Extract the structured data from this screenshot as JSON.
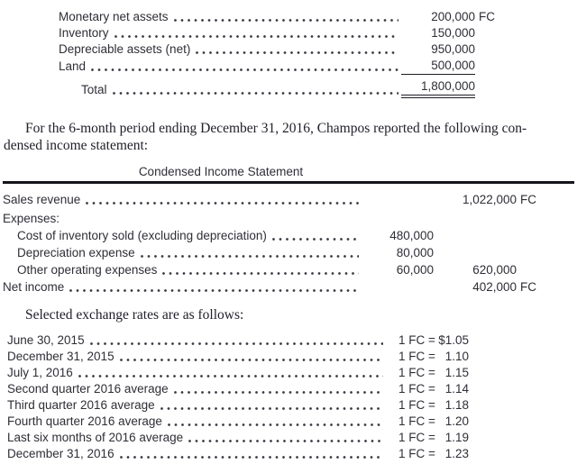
{
  "colors": {
    "text": "#2e2e36",
    "rule": "#15151c",
    "background": "#ffffff"
  },
  "net_assets_table": {
    "rows": [
      {
        "label": "Monetary net assets",
        "amount": "200,000",
        "suffix": "FC"
      },
      {
        "label": "Inventory",
        "amount": "150,000",
        "suffix": ""
      },
      {
        "label": "Depreciable assets (net)",
        "amount": "950,000",
        "suffix": ""
      },
      {
        "label": "Land",
        "amount": "500,000",
        "suffix": ""
      },
      {
        "label": "Total",
        "amount": "1,800,000",
        "suffix": ""
      }
    ]
  },
  "intro_paragraph": {
    "line1": "For the 6-month period ending December 31, 2016, Champos reported the following con-",
    "line2": "densed income statement:"
  },
  "income_statement": {
    "title": "Condensed Income Statement",
    "rows": [
      {
        "label": "Sales revenue",
        "col1": "",
        "col2": "1,022,000",
        "suffix": "FC"
      },
      {
        "label": "Expenses:",
        "col1": "",
        "col2": "",
        "suffix": ""
      },
      {
        "label": "Cost of inventory sold (excluding depreciation)",
        "col1": "480,000",
        "col2": "",
        "suffix": ""
      },
      {
        "label": "Depreciation expense",
        "col1": "80,000",
        "col2": "",
        "suffix": ""
      },
      {
        "label": "Other operating expenses",
        "col1": "60,000",
        "col2": "620,000",
        "suffix": ""
      },
      {
        "label": "Net income",
        "col1": "",
        "col2": "402,000",
        "suffix": "FC"
      }
    ]
  },
  "exchange_rates_intro": "Selected exchange rates are as follows:",
  "exchange_rates": {
    "rows": [
      {
        "label": "June 30, 2015",
        "prefix": "1 FC =",
        "value": "$1.05"
      },
      {
        "label": "December 31, 2015",
        "prefix": "1 FC =",
        "value": "1.10"
      },
      {
        "label": "July 1, 2016",
        "prefix": "1 FC =",
        "value": "1.15"
      },
      {
        "label": "Second quarter 2016 average",
        "prefix": "1 FC =",
        "value": "1.14"
      },
      {
        "label": "Third quarter 2016 average",
        "prefix": "1 FC =",
        "value": "1.18"
      },
      {
        "label": "Fourth quarter 2016 average",
        "prefix": "1 FC =",
        "value": "1.20"
      },
      {
        "label": "Last six months of 2016 average",
        "prefix": "1 FC =",
        "value": "1.19"
      },
      {
        "label": "December 31, 2016",
        "prefix": "1 FC =",
        "value": "1.23"
      }
    ]
  }
}
